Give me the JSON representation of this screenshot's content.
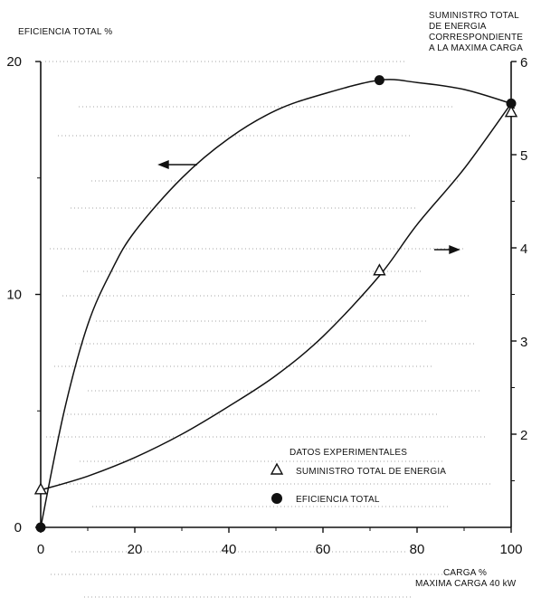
{
  "chart_data": {
    "type": "line",
    "left_axis_title": "EFICIENCIA TOTAL %",
    "right_axis_title": [
      "SUMINISTRO TOTAL",
      "DE ENERGIA",
      "CORRESPONDIENTE",
      "A LA MAXIMA CARGA"
    ],
    "x_axis_title": [
      "CARGA %",
      "MAXIMA CARGA 40 kW"
    ],
    "xlim": [
      0,
      100
    ],
    "ylim_left": [
      0,
      20
    ],
    "ylim_right": [
      1,
      6
    ],
    "x_ticks": [
      "0",
      "20",
      "40",
      "60",
      "80",
      "100"
    ],
    "left_ticks": [
      "0",
      "10",
      "20"
    ],
    "right_ticks": [
      "2",
      "3",
      "4",
      "5",
      "6"
    ],
    "legend_title": "DATOS EXPERIMENTALES",
    "legend": [
      {
        "marker": "triangle",
        "label": "SUMINISTRO TOTAL DE ENERGIA"
      },
      {
        "marker": "circle",
        "label": "EFICIENCIA TOTAL"
      }
    ],
    "series": [
      {
        "axis": "left",
        "marker": "circle",
        "curve": [
          [
            0,
            0
          ],
          [
            5,
            5.0
          ],
          [
            10,
            8.7
          ],
          [
            15,
            11.0
          ],
          [
            20,
            12.7
          ],
          [
            30,
            15.0
          ],
          [
            40,
            16.7
          ],
          [
            50,
            17.9
          ],
          [
            60,
            18.6
          ],
          [
            72,
            19.2
          ],
          [
            80,
            19.1
          ],
          [
            90,
            18.8
          ],
          [
            100,
            18.2
          ]
        ],
        "points": [
          [
            0,
            0
          ],
          [
            72,
            19.2
          ],
          [
            100,
            18.2
          ]
        ]
      },
      {
        "axis": "right",
        "marker": "triangle",
        "curve": [
          [
            0,
            1.4
          ],
          [
            10,
            1.55
          ],
          [
            20,
            1.75
          ],
          [
            30,
            2.0
          ],
          [
            40,
            2.3
          ],
          [
            50,
            2.63
          ],
          [
            60,
            3.05
          ],
          [
            72,
            3.7
          ],
          [
            80,
            4.25
          ],
          [
            90,
            4.85
          ],
          [
            100,
            5.55
          ]
        ],
        "points": [
          [
            0,
            1.4
          ],
          [
            72,
            3.75
          ],
          [
            100,
            5.45
          ]
        ]
      }
    ]
  }
}
